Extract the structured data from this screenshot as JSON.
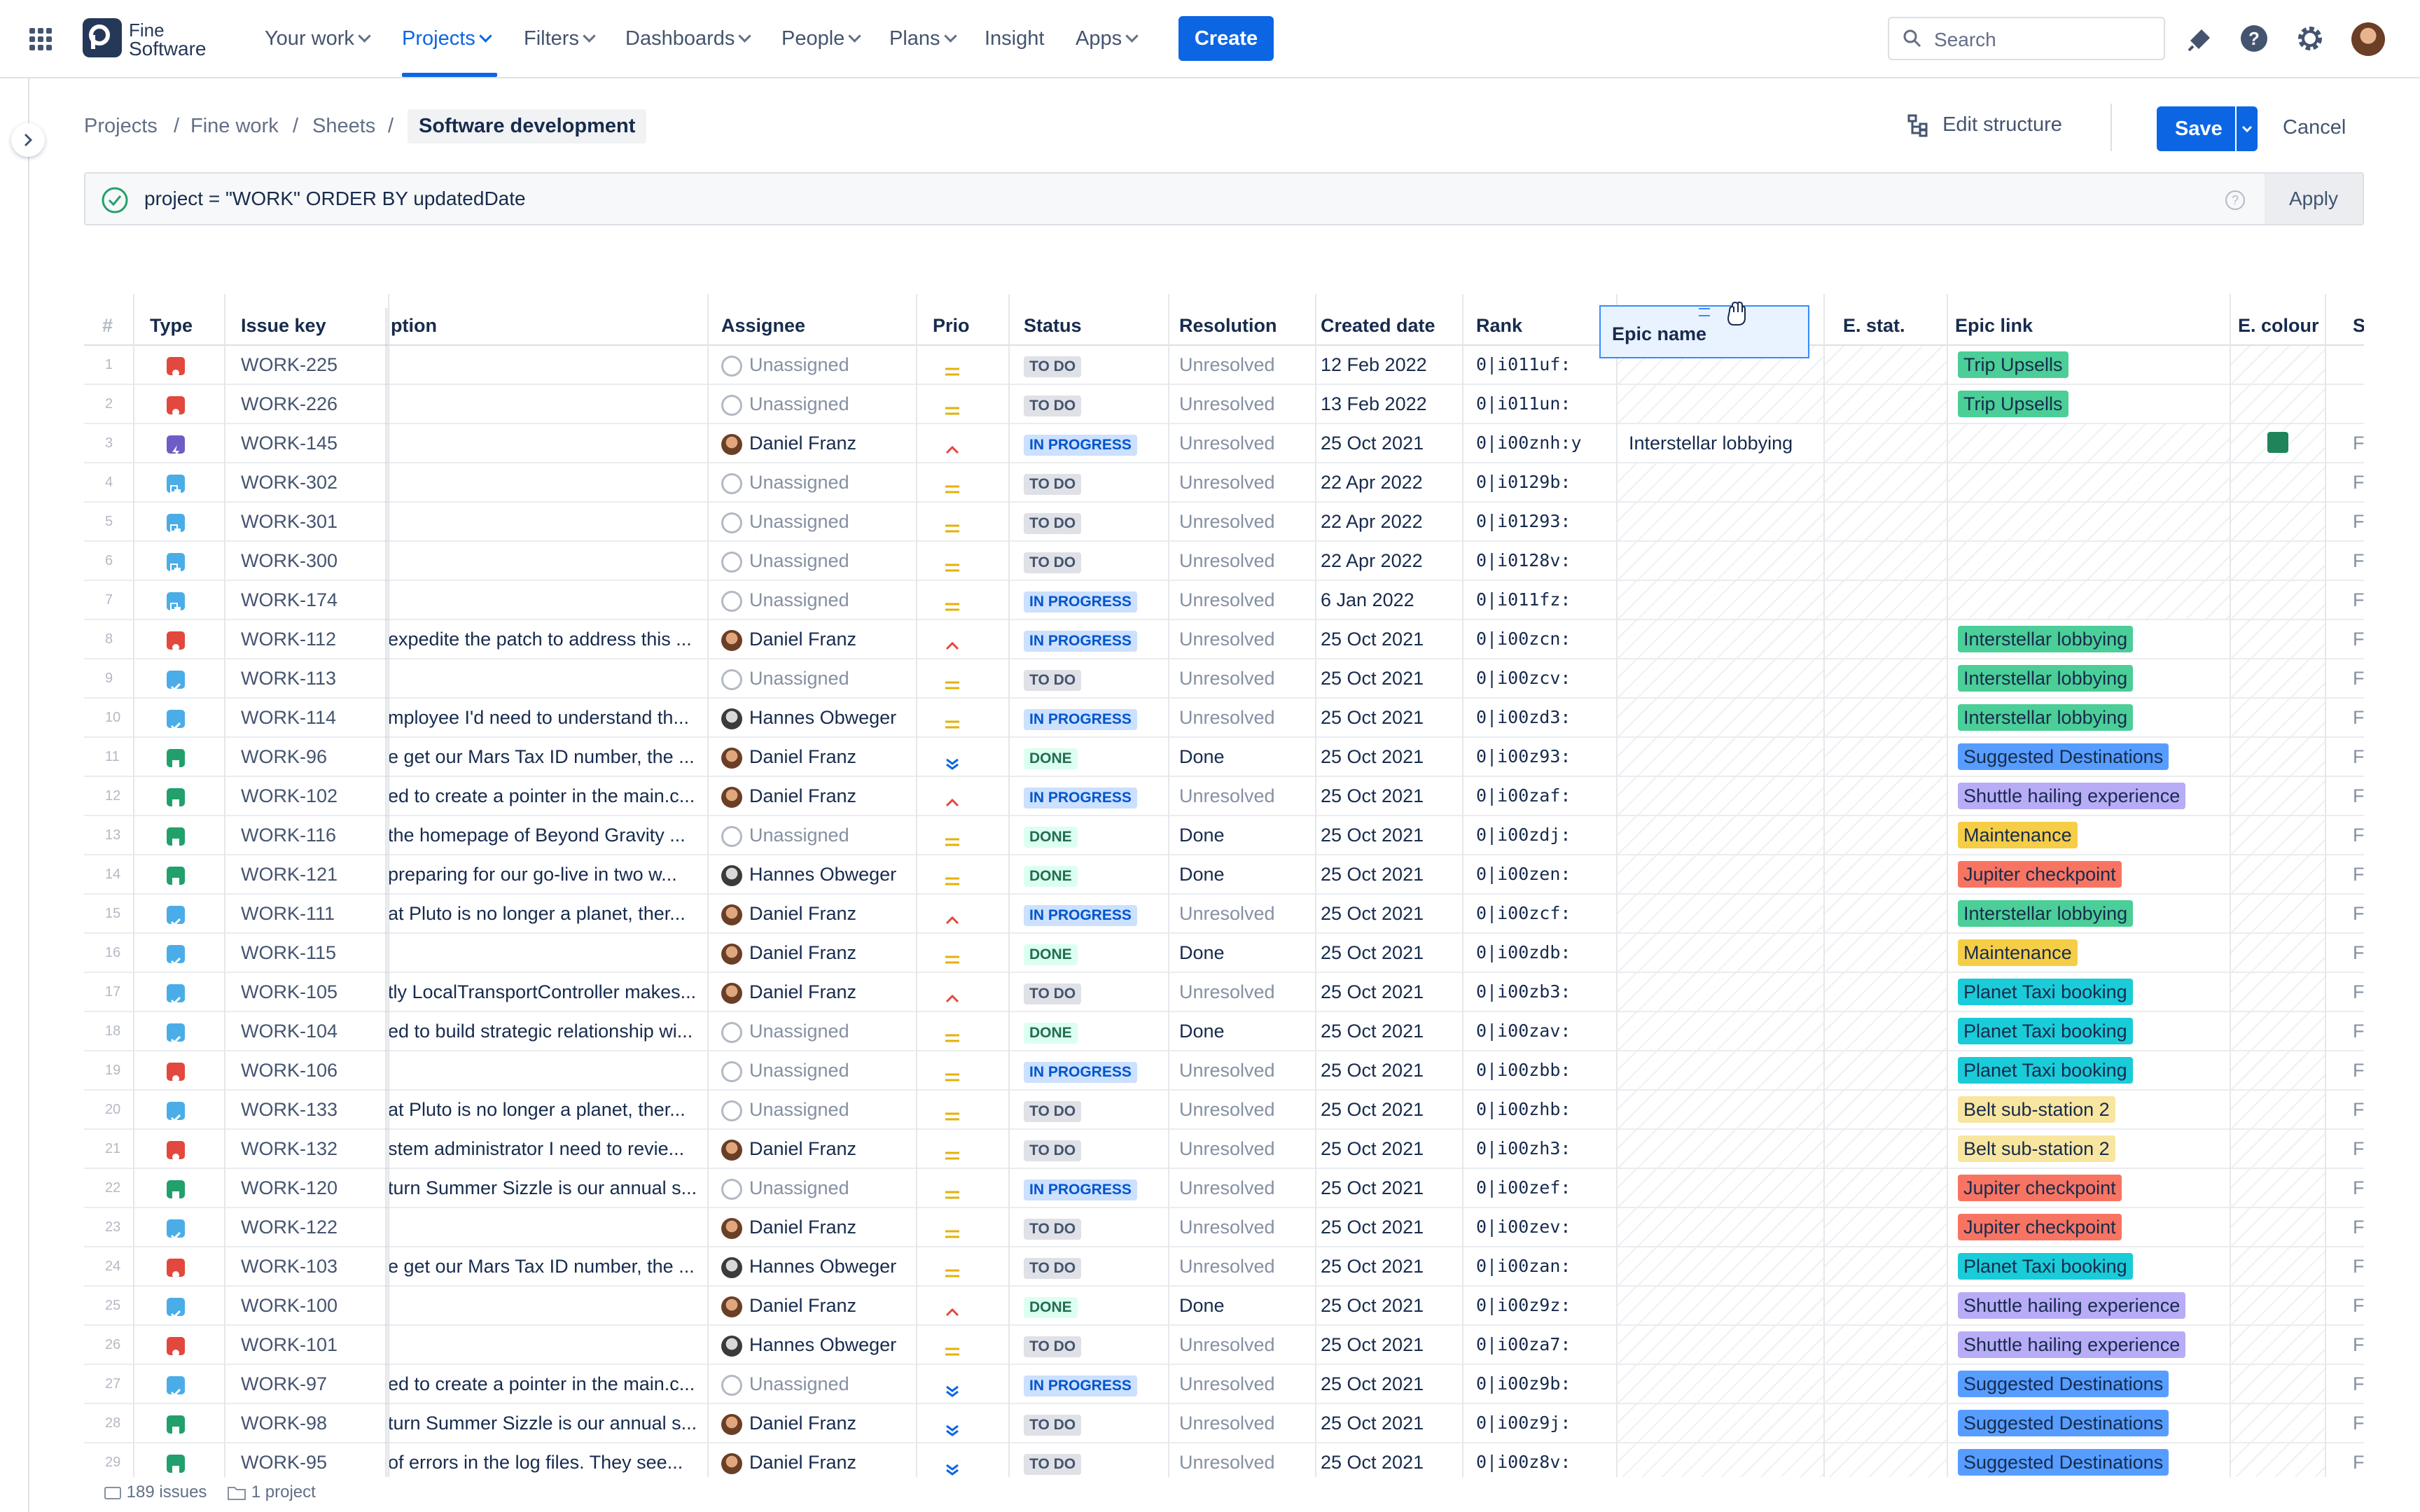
{
  "nav": {
    "logo_line1": "Fine",
    "logo_line2": "Software",
    "items": [
      "Your work",
      "Projects",
      "Filters",
      "Dashboards",
      "People",
      "Plans",
      "Insight",
      "Apps"
    ],
    "create_label": "Create",
    "search_placeholder": "Search"
  },
  "breadcrumb": [
    "Projects",
    "Fine work",
    "Sheets",
    "Software development"
  ],
  "actions": {
    "edit_structure": "Edit structure",
    "save": "Save",
    "cancel": "Cancel"
  },
  "jql": {
    "query": "project = \"WORK\" ORDER BY updatedDate",
    "apply": "Apply"
  },
  "columns": {
    "num": "#",
    "type": "Type",
    "key": "Issue key",
    "desc": "ption",
    "assignee": "Assignee",
    "prio": "Prio",
    "status": "Status",
    "resolution": "Resolution",
    "created": "Created date",
    "rank": "Rank",
    "epic_name": "Epic name",
    "estat": "E. stat.",
    "epic_link": "Epic link",
    "ecolour": "E. colour",
    "s": "S"
  },
  "colors": {
    "accent": "#0C66E4",
    "bug": "#E2483D",
    "epic": "#6E5DC6",
    "subtask": "#4BADE8",
    "task": "#4BADE8",
    "story": "#22A06B",
    "prio_medium": "#E2B203",
    "prio_high": "#E2483D",
    "prio_low": "#0C66E4",
    "epic_trip": "#4BCE97",
    "epic_inter": "#4BCE97",
    "epic_sugg": "#579DFF",
    "epic_shuttle": "#B8ACF6",
    "epic_maint": "#F5CD47",
    "epic_jupiter": "#F87462",
    "epic_taxi": "#1ACBD8",
    "epic_belt": "#F8E6A0",
    "ecolour_swatch": "#1F845A"
  },
  "rows": [
    {
      "n": "1",
      "type": "bug",
      "key": "WORK-225",
      "desc": "",
      "assignee": "Unassigned",
      "av": "none",
      "prio": "medium",
      "status": "TO DO",
      "sc": "todo",
      "res": "Unresolved",
      "created": "12 Feb 2022",
      "rank": "0|i011uf:",
      "epic_name": "",
      "epic": "Trip Upsells",
      "ec": "trip",
      "swatch": false,
      "s": ""
    },
    {
      "n": "2",
      "type": "bug",
      "key": "WORK-226",
      "desc": "",
      "assignee": "Unassigned",
      "av": "none",
      "prio": "medium",
      "status": "TO DO",
      "sc": "todo",
      "res": "Unresolved",
      "created": "13 Feb 2022",
      "rank": "0|i011un:",
      "epic_name": "",
      "epic": "Trip Upsells",
      "ec": "trip",
      "swatch": false,
      "s": ""
    },
    {
      "n": "3",
      "type": "epic",
      "key": "WORK-145",
      "desc": "",
      "assignee": "Daniel Franz",
      "av": "dan",
      "prio": "high",
      "status": "IN PROGRESS",
      "sc": "prog",
      "res": "Unresolved",
      "created": "25 Oct 2021",
      "rank": "0|i00znh:y",
      "epic_name": "Interstellar lobbying",
      "epic": "",
      "ec": "",
      "swatch": true,
      "s": "Fi"
    },
    {
      "n": "4",
      "type": "subtask",
      "key": "WORK-302",
      "desc": "",
      "assignee": "Unassigned",
      "av": "none",
      "prio": "medium",
      "status": "TO DO",
      "sc": "todo",
      "res": "Unresolved",
      "created": "22 Apr 2022",
      "rank": "0|i0129b:",
      "epic_name": "",
      "epic": "",
      "ec": "",
      "swatch": false,
      "s": "Fi"
    },
    {
      "n": "5",
      "type": "subtask",
      "key": "WORK-301",
      "desc": "",
      "assignee": "Unassigned",
      "av": "none",
      "prio": "medium",
      "status": "TO DO",
      "sc": "todo",
      "res": "Unresolved",
      "created": "22 Apr 2022",
      "rank": "0|i01293:",
      "epic_name": "",
      "epic": "",
      "ec": "",
      "swatch": false,
      "s": "Fi"
    },
    {
      "n": "6",
      "type": "subtask",
      "key": "WORK-300",
      "desc": "",
      "assignee": "Unassigned",
      "av": "none",
      "prio": "medium",
      "status": "TO DO",
      "sc": "todo",
      "res": "Unresolved",
      "created": "22 Apr 2022",
      "rank": "0|i0128v:",
      "epic_name": "",
      "epic": "",
      "ec": "",
      "swatch": false,
      "s": "Fi"
    },
    {
      "n": "7",
      "type": "subtask",
      "key": "WORK-174",
      "desc": "",
      "assignee": "Unassigned",
      "av": "none",
      "prio": "medium",
      "status": "IN PROGRESS",
      "sc": "prog",
      "res": "Unresolved",
      "created": "6 Jan 2022",
      "rank": "0|i011fz:",
      "epic_name": "",
      "epic": "",
      "ec": "",
      "swatch": false,
      "s": "Fi"
    },
    {
      "n": "8",
      "type": "bug",
      "key": "WORK-112",
      "desc": "expedite the patch to address this ...",
      "assignee": "Daniel Franz",
      "av": "dan",
      "prio": "high",
      "status": "IN PROGRESS",
      "sc": "prog",
      "res": "Unresolved",
      "created": "25 Oct 2021",
      "rank": "0|i00zcn:",
      "epic_name": "",
      "epic": "Interstellar lobbying",
      "ec": "inter",
      "swatch": false,
      "s": "Fi"
    },
    {
      "n": "9",
      "type": "task",
      "key": "WORK-113",
      "desc": "",
      "assignee": "Unassigned",
      "av": "none",
      "prio": "medium",
      "status": "TO DO",
      "sc": "todo",
      "res": "Unresolved",
      "created": "25 Oct 2021",
      "rank": "0|i00zcv:",
      "epic_name": "",
      "epic": "Interstellar lobbying",
      "ec": "inter",
      "swatch": false,
      "s": "Fi"
    },
    {
      "n": "10",
      "type": "task",
      "key": "WORK-114",
      "desc": "mployee I'd need to understand th...",
      "assignee": "Hannes Obweger",
      "av": "han",
      "prio": "medium",
      "status": "IN PROGRESS",
      "sc": "prog",
      "res": "Unresolved",
      "created": "25 Oct 2021",
      "rank": "0|i00zd3:",
      "epic_name": "",
      "epic": "Interstellar lobbying",
      "ec": "inter",
      "swatch": false,
      "s": "Fi"
    },
    {
      "n": "11",
      "type": "story",
      "key": "WORK-96",
      "desc": "e get our Mars Tax ID number, the ...",
      "assignee": "Daniel Franz",
      "av": "dan",
      "prio": "low",
      "status": "DONE",
      "sc": "done",
      "res": "Done",
      "created": "25 Oct 2021",
      "rank": "0|i00z93:",
      "epic_name": "",
      "epic": "Suggested Destinations",
      "ec": "sugg",
      "swatch": false,
      "s": "Fi"
    },
    {
      "n": "12",
      "type": "story",
      "key": "WORK-102",
      "desc": "ed to create a pointer in the main.c...",
      "assignee": "Daniel Franz",
      "av": "dan",
      "prio": "high",
      "status": "IN PROGRESS",
      "sc": "prog",
      "res": "Unresolved",
      "created": "25 Oct 2021",
      "rank": "0|i00zaf:",
      "epic_name": "",
      "epic": "Shuttle hailing experience",
      "ec": "shuttle",
      "swatch": false,
      "s": "Fi"
    },
    {
      "n": "13",
      "type": "story",
      "key": "WORK-116",
      "desc": "the homepage of Beyond Gravity ...",
      "assignee": "Unassigned",
      "av": "none",
      "prio": "medium",
      "status": "DONE",
      "sc": "done",
      "res": "Done",
      "created": "25 Oct 2021",
      "rank": "0|i00zdj:",
      "epic_name": "",
      "epic": "Maintenance",
      "ec": "maint",
      "swatch": false,
      "s": "Fi"
    },
    {
      "n": "14",
      "type": "story",
      "key": "WORK-121",
      "desc": "preparing for our go-live in two w...",
      "assignee": "Hannes Obweger",
      "av": "han",
      "prio": "medium",
      "status": "DONE",
      "sc": "done",
      "res": "Done",
      "created": "25 Oct 2021",
      "rank": "0|i00zen:",
      "epic_name": "",
      "epic": "Jupiter checkpoint",
      "ec": "jupiter",
      "swatch": false,
      "s": "Fi"
    },
    {
      "n": "15",
      "type": "task",
      "key": "WORK-111",
      "desc": "at Pluto is no longer a planet, ther...",
      "assignee": "Daniel Franz",
      "av": "dan",
      "prio": "high",
      "status": "IN PROGRESS",
      "sc": "prog",
      "res": "Unresolved",
      "created": "25 Oct 2021",
      "rank": "0|i00zcf:",
      "epic_name": "",
      "epic": "Interstellar lobbying",
      "ec": "inter",
      "swatch": false,
      "s": "Fi"
    },
    {
      "n": "16",
      "type": "task",
      "key": "WORK-115",
      "desc": "",
      "assignee": "Daniel Franz",
      "av": "dan",
      "prio": "medium",
      "status": "DONE",
      "sc": "done",
      "res": "Done",
      "created": "25 Oct 2021",
      "rank": "0|i00zdb:",
      "epic_name": "",
      "epic": "Maintenance",
      "ec": "maint",
      "swatch": false,
      "s": "Fi"
    },
    {
      "n": "17",
      "type": "task",
      "key": "WORK-105",
      "desc": "tly LocalTransportController makes...",
      "assignee": "Daniel Franz",
      "av": "dan",
      "prio": "high",
      "status": "TO DO",
      "sc": "todo",
      "res": "Unresolved",
      "created": "25 Oct 2021",
      "rank": "0|i00zb3:",
      "epic_name": "",
      "epic": "Planet Taxi booking",
      "ec": "taxi",
      "swatch": false,
      "s": "Fi"
    },
    {
      "n": "18",
      "type": "task",
      "key": "WORK-104",
      "desc": "ed to build strategic relationship wi...",
      "assignee": "Unassigned",
      "av": "none",
      "prio": "medium",
      "status": "DONE",
      "sc": "done",
      "res": "Done",
      "created": "25 Oct 2021",
      "rank": "0|i00zav:",
      "epic_name": "",
      "epic": "Planet Taxi booking",
      "ec": "taxi",
      "swatch": false,
      "s": "Fi"
    },
    {
      "n": "19",
      "type": "bug",
      "key": "WORK-106",
      "desc": "",
      "assignee": "Unassigned",
      "av": "none",
      "prio": "medium",
      "status": "IN PROGRESS",
      "sc": "prog",
      "res": "Unresolved",
      "created": "25 Oct 2021",
      "rank": "0|i00zbb:",
      "epic_name": "",
      "epic": "Planet Taxi booking",
      "ec": "taxi",
      "swatch": false,
      "s": "Fi"
    },
    {
      "n": "20",
      "type": "task",
      "key": "WORK-133",
      "desc": "at Pluto is no longer a planet, ther...",
      "assignee": "Unassigned",
      "av": "none",
      "prio": "medium",
      "status": "TO DO",
      "sc": "todo",
      "res": "Unresolved",
      "created": "25 Oct 2021",
      "rank": "0|i00zhb:",
      "epic_name": "",
      "epic": "Belt sub-station 2",
      "ec": "belt",
      "swatch": false,
      "s": "Fi"
    },
    {
      "n": "21",
      "type": "bug",
      "key": "WORK-132",
      "desc": "stem administrator I need to revie...",
      "assignee": "Daniel Franz",
      "av": "dan",
      "prio": "medium",
      "status": "TO DO",
      "sc": "todo",
      "res": "Unresolved",
      "created": "25 Oct 2021",
      "rank": "0|i00zh3:",
      "epic_name": "",
      "epic": "Belt sub-station 2",
      "ec": "belt",
      "swatch": false,
      "s": "Fi"
    },
    {
      "n": "22",
      "type": "story",
      "key": "WORK-120",
      "desc": "turn Summer Sizzle is our annual s...",
      "assignee": "Unassigned",
      "av": "none",
      "prio": "medium",
      "status": "IN PROGRESS",
      "sc": "prog",
      "res": "Unresolved",
      "created": "25 Oct 2021",
      "rank": "0|i00zef:",
      "epic_name": "",
      "epic": "Jupiter checkpoint",
      "ec": "jupiter",
      "swatch": false,
      "s": "Fi"
    },
    {
      "n": "23",
      "type": "task",
      "key": "WORK-122",
      "desc": "",
      "assignee": "Daniel Franz",
      "av": "dan",
      "prio": "medium",
      "status": "TO DO",
      "sc": "todo",
      "res": "Unresolved",
      "created": "25 Oct 2021",
      "rank": "0|i00zev:",
      "epic_name": "",
      "epic": "Jupiter checkpoint",
      "ec": "jupiter",
      "swatch": false,
      "s": "Fi"
    },
    {
      "n": "24",
      "type": "bug",
      "key": "WORK-103",
      "desc": "e get our Mars Tax ID number, the ...",
      "assignee": "Hannes Obweger",
      "av": "han",
      "prio": "medium",
      "status": "TO DO",
      "sc": "todo",
      "res": "Unresolved",
      "created": "25 Oct 2021",
      "rank": "0|i00zan:",
      "epic_name": "",
      "epic": "Planet Taxi booking",
      "ec": "taxi",
      "swatch": false,
      "s": "Fi"
    },
    {
      "n": "25",
      "type": "task",
      "key": "WORK-100",
      "desc": "",
      "assignee": "Daniel Franz",
      "av": "dan",
      "prio": "high",
      "status": "DONE",
      "sc": "done",
      "res": "Done",
      "created": "25 Oct 2021",
      "rank": "0|i00z9z:",
      "epic_name": "",
      "epic": "Shuttle hailing experience",
      "ec": "shuttle",
      "swatch": false,
      "s": "Fi"
    },
    {
      "n": "26",
      "type": "bug",
      "key": "WORK-101",
      "desc": "",
      "assignee": "Hannes Obweger",
      "av": "han",
      "prio": "medium",
      "status": "TO DO",
      "sc": "todo",
      "res": "Unresolved",
      "created": "25 Oct 2021",
      "rank": "0|i00za7:",
      "epic_name": "",
      "epic": "Shuttle hailing experience",
      "ec": "shuttle",
      "swatch": false,
      "s": "Fi"
    },
    {
      "n": "27",
      "type": "task",
      "key": "WORK-97",
      "desc": "ed to create a pointer in the main.c...",
      "assignee": "Unassigned",
      "av": "none",
      "prio": "low",
      "status": "IN PROGRESS",
      "sc": "prog",
      "res": "Unresolved",
      "created": "25 Oct 2021",
      "rank": "0|i00z9b:",
      "epic_name": "",
      "epic": "Suggested Destinations",
      "ec": "sugg",
      "swatch": false,
      "s": "Fi"
    },
    {
      "n": "28",
      "type": "story",
      "key": "WORK-98",
      "desc": "turn Summer Sizzle is our annual s...",
      "assignee": "Daniel Franz",
      "av": "dan",
      "prio": "low",
      "status": "TO DO",
      "sc": "todo",
      "res": "Unresolved",
      "created": "25 Oct 2021",
      "rank": "0|i00z9j:",
      "epic_name": "",
      "epic": "Suggested Destinations",
      "ec": "sugg",
      "swatch": false,
      "s": "Fi"
    },
    {
      "n": "29",
      "type": "story",
      "key": "WORK-95",
      "desc": "of errors in the log files. They see...",
      "assignee": "Daniel Franz",
      "av": "dan",
      "prio": "low",
      "status": "TO DO",
      "sc": "todo",
      "res": "Unresolved",
      "created": "25 Oct 2021",
      "rank": "0|i00z8v:",
      "epic_name": "",
      "epic": "Suggested Destinations",
      "ec": "sugg",
      "swatch": false,
      "s": "Fi"
    }
  ],
  "footer": {
    "issues": "189 issues",
    "projects": "1 project"
  }
}
